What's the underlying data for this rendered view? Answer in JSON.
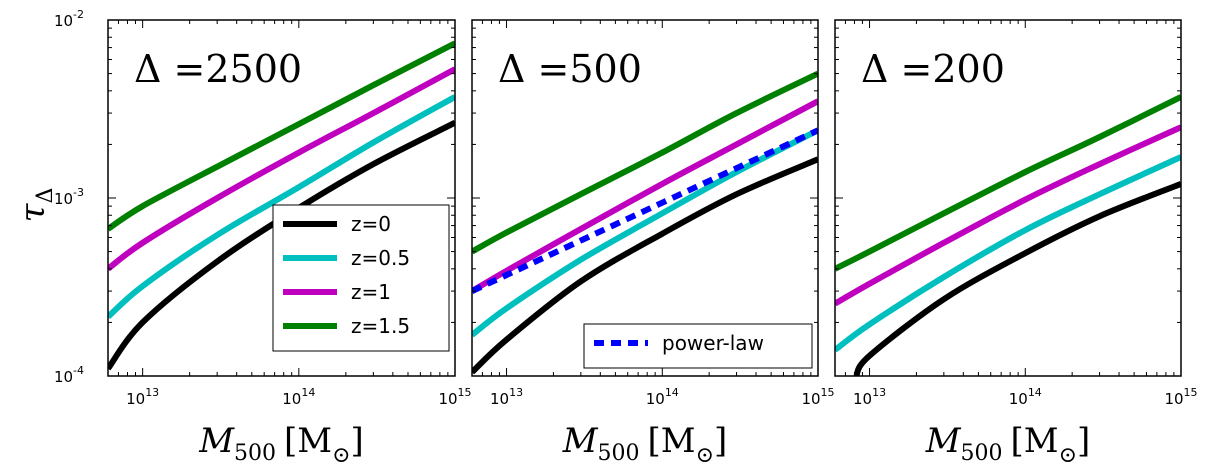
{
  "figure": {
    "ylabel": "τ",
    "ylabel_sub": "Δ"
  },
  "chart_data": [
    {
      "type": "line",
      "panel_label": "Δ =2500",
      "xscale": "log",
      "yscale": "log",
      "xlim": [
        6000000000000.0,
        1000000000000000.0
      ],
      "ylim": [
        0.0001,
        0.01
      ],
      "xlabel": "M",
      "xlabel_sub": "500",
      "xlabel_unit": "[M",
      "xlabel_unit_sub": "⊙",
      "xlabel_close": "]",
      "xticks": [
        {
          "value": 10000000000000.0,
          "base": "10",
          "exp": "13"
        },
        {
          "value": 100000000000000.0,
          "base": "10",
          "exp": "14"
        },
        {
          "value": 1000000000000000.0,
          "base": "10",
          "exp": "15"
        }
      ],
      "yticks": [
        {
          "value": 0.0001,
          "base": "10",
          "exp": "-4"
        },
        {
          "value": 0.001,
          "base": "10",
          "exp": "-3"
        },
        {
          "value": 0.01,
          "base": "10",
          "exp": "-2"
        }
      ],
      "legend": "center-right",
      "series": [
        {
          "name": "z=0",
          "color": "#000000",
          "dash": false,
          "x": [
            6000000000000.0,
            10000000000000.0,
            30000000000000.0,
            100000000000000.0,
            300000000000000.0,
            1000000000000000.0
          ],
          "y": [
            0.00011,
            0.0002,
            0.00044,
            0.00088,
            0.00155,
            0.00265
          ]
        },
        {
          "name": "z=0.5",
          "color": "#00bfbf",
          "dash": false,
          "x": [
            6000000000000.0,
            10000000000000.0,
            30000000000000.0,
            100000000000000.0,
            300000000000000.0,
            1000000000000000.0
          ],
          "y": [
            0.000215,
            0.00032,
            0.00062,
            0.00115,
            0.00205,
            0.0037
          ]
        },
        {
          "name": "z=1",
          "color": "#bf00bf",
          "dash": false,
          "x": [
            6000000000000.0,
            10000000000000.0,
            30000000000000.0,
            100000000000000.0,
            300000000000000.0,
            1000000000000000.0
          ],
          "y": [
            0.0004,
            0.00056,
            0.001,
            0.0018,
            0.003,
            0.0053
          ]
        },
        {
          "name": "z=1.5",
          "color": "#008000",
          "dash": false,
          "x": [
            6000000000000.0,
            10000000000000.0,
            30000000000000.0,
            100000000000000.0,
            300000000000000.0,
            1000000000000000.0
          ],
          "y": [
            0.00067,
            0.0009,
            0.0015,
            0.0026,
            0.0043,
            0.0074
          ]
        }
      ]
    },
    {
      "type": "line",
      "panel_label": "Δ =500",
      "xscale": "log",
      "yscale": "log",
      "xlim": [
        6000000000000.0,
        1000000000000000.0
      ],
      "ylim": [
        0.0001,
        0.01
      ],
      "xlabel": "M",
      "xlabel_sub": "500",
      "xlabel_unit": "[M",
      "xlabel_unit_sub": "⊙",
      "xlabel_close": "]",
      "xticks": [
        {
          "value": 10000000000000.0,
          "base": "10",
          "exp": "13"
        },
        {
          "value": 100000000000000.0,
          "base": "10",
          "exp": "14"
        },
        {
          "value": 1000000000000000.0,
          "base": "10",
          "exp": "15"
        }
      ],
      "legend": "bottom-right",
      "series": [
        {
          "color": "#000000",
          "dash": false,
          "x": [
            6000000000000.0,
            10000000000000.0,
            30000000000000.0,
            100000000000000.0,
            300000000000000.0,
            1000000000000000.0
          ],
          "y": [
            0.000105,
            0.00016,
            0.00034,
            0.00063,
            0.00105,
            0.00165
          ]
        },
        {
          "color": "#00bfbf",
          "dash": false,
          "x": [
            6000000000000.0,
            10000000000000.0,
            30000000000000.0,
            100000000000000.0,
            300000000000000.0,
            1000000000000000.0
          ],
          "y": [
            0.00017,
            0.00024,
            0.00045,
            0.00082,
            0.0014,
            0.0024
          ]
        },
        {
          "color": "#bf00bf",
          "dash": false,
          "x": [
            6000000000000.0,
            10000000000000.0,
            30000000000000.0,
            100000000000000.0,
            300000000000000.0,
            1000000000000000.0
          ],
          "y": [
            0.0003,
            0.00039,
            0.00067,
            0.0012,
            0.002,
            0.0035
          ]
        },
        {
          "color": "#008000",
          "dash": false,
          "x": [
            6000000000000.0,
            10000000000000.0,
            30000000000000.0,
            100000000000000.0,
            300000000000000.0,
            1000000000000000.0
          ],
          "y": [
            0.0005,
            0.00064,
            0.00105,
            0.0018,
            0.003,
            0.005
          ]
        },
        {
          "name": "power-law",
          "color": "#0000ff",
          "dash": true,
          "x": [
            6000000000000.0,
            1000000000000000.0
          ],
          "y": [
            0.0003,
            0.0024
          ]
        }
      ]
    },
    {
      "type": "line",
      "panel_label": "Δ =200",
      "xscale": "log",
      "yscale": "log",
      "xlim": [
        6000000000000.0,
        1000000000000000.0
      ],
      "ylim": [
        0.0001,
        0.01
      ],
      "xlabel": "M",
      "xlabel_sub": "500",
      "xlabel_unit": "[M",
      "xlabel_unit_sub": "⊙",
      "xlabel_close": "]",
      "xticks": [
        {
          "value": 10000000000000.0,
          "base": "10",
          "exp": "13"
        },
        {
          "value": 100000000000000.0,
          "base": "10",
          "exp": "14"
        },
        {
          "value": 1000000000000000.0,
          "base": "10",
          "exp": "15"
        }
      ],
      "legend": "none",
      "series": [
        {
          "color": "#000000",
          "dash": false,
          "x": [
            8200000000000.0,
            10000000000000.0,
            30000000000000.0,
            100000000000000.0,
            300000000000000.0,
            1000000000000000.0
          ],
          "y": [
            0.0001,
            0.00013,
            0.00027,
            0.00049,
            0.00079,
            0.0012
          ]
        },
        {
          "color": "#00bfbf",
          "dash": false,
          "x": [
            6000000000000.0,
            10000000000000.0,
            30000000000000.0,
            100000000000000.0,
            300000000000000.0,
            1000000000000000.0
          ],
          "y": [
            0.00014,
            0.000195,
            0.00036,
            0.00066,
            0.00105,
            0.0017
          ]
        },
        {
          "color": "#bf00bf",
          "dash": false,
          "x": [
            6000000000000.0,
            10000000000000.0,
            30000000000000.0,
            100000000000000.0,
            300000000000000.0,
            1000000000000000.0
          ],
          "y": [
            0.000255,
            0.00033,
            0.00056,
            0.00098,
            0.00155,
            0.0025
          ]
        },
        {
          "color": "#008000",
          "dash": false,
          "x": [
            6000000000000.0,
            10000000000000.0,
            30000000000000.0,
            100000000000000.0,
            300000000000000.0,
            1000000000000000.0
          ],
          "y": [
            0.0004,
            0.0005,
            0.00082,
            0.0014,
            0.0022,
            0.0037
          ]
        }
      ]
    }
  ]
}
